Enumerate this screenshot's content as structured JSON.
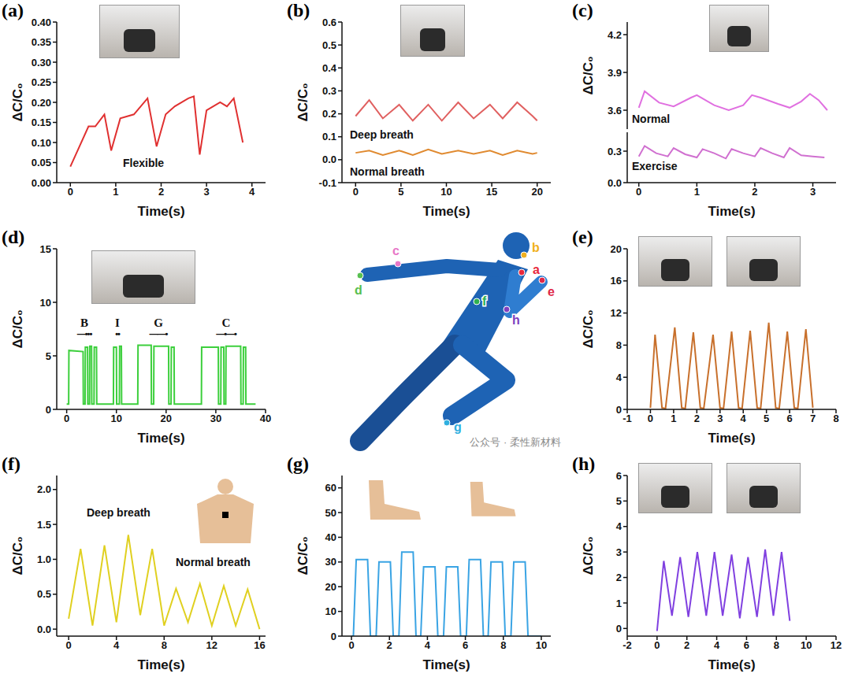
{
  "chart_data": [
    {
      "panel": "(a)",
      "type": "line",
      "x_label": "Time(s)",
      "y_label": "ΔC/C₀",
      "xlim": [
        -0.3,
        4.3
      ],
      "xticks": [
        0,
        1,
        2,
        3,
        4
      ],
      "ylim": [
        0,
        0.4
      ],
      "yticks": [
        {
          "value": 0,
          "label": "0.00"
        },
        0.05,
        {
          "value": 0.1,
          "label": "0.10"
        },
        0.15,
        {
          "value": 0.2,
          "label": "0.20"
        },
        0.25,
        {
          "value": 0.3,
          "label": "0.30"
        },
        0.35,
        {
          "value": 0.4,
          "label": "0.40"
        }
      ],
      "x": [
        0,
        0.2,
        0.4,
        0.55,
        0.75,
        0.9,
        1.1,
        1.4,
        1.7,
        1.9,
        2.1,
        2.3,
        2.6,
        2.72,
        2.85,
        3.0,
        3.3,
        3.45,
        3.6,
        3.8
      ],
      "values": [
        0.04,
        0.09,
        0.14,
        0.14,
        0.17,
        0.08,
        0.16,
        0.17,
        0.21,
        0.09,
        0.17,
        0.19,
        0.21,
        0.215,
        0.07,
        0.18,
        0.2,
        0.19,
        0.21,
        0.1
      ],
      "color": "#e03030",
      "annotations": [
        "Flexible"
      ]
    },
    {
      "panel": "(b)",
      "type": "line",
      "x_label": "Time(s)",
      "y_label": "ΔC/C₀",
      "xlim": [
        -1.5,
        21.5
      ],
      "xticks": [
        0,
        5,
        10,
        15,
        20
      ],
      "ylim": [
        -0.1,
        0.6
      ],
      "yticks": [
        -0.1,
        {
          "value": 0,
          "label": "0.0"
        },
        0.1,
        0.2,
        0.3,
        0.4,
        0.5,
        0.6
      ],
      "x": [
        0,
        1.5,
        3,
        4.8,
        6.3,
        8,
        9.5,
        11.3,
        13,
        14.8,
        16.2,
        17.8,
        19.5,
        20
      ],
      "series": [
        {
          "name": "Deep breath",
          "color": "#e06060",
          "values": [
            0.19,
            0.26,
            0.18,
            0.24,
            0.17,
            0.24,
            0.17,
            0.25,
            0.18,
            0.24,
            0.18,
            0.25,
            0.19,
            0.17
          ]
        },
        {
          "name": "Normal breath",
          "color": "#e08a30",
          "values": [
            0.03,
            0.04,
            0.02,
            0.04,
            0.02,
            0.045,
            0.025,
            0.04,
            0.025,
            0.04,
            0.02,
            0.04,
            0.025,
            0.03
          ]
        }
      ]
    },
    {
      "panel": "(c)",
      "type": "line",
      "y_label": "ΔC/C₀",
      "tick_labels": "y",
      "xlim": [
        -0.2,
        3.4
      ],
      "ylim": [
        3.45,
        4.3
      ],
      "yticks": [
        3.6,
        3.9,
        4.2
      ],
      "x": [
        0,
        0.1,
        0.35,
        0.6,
        0.9,
        1.0,
        1.3,
        1.55,
        1.8,
        1.95,
        2.1,
        2.4,
        2.6,
        2.8,
        2.95,
        3.1,
        3.25
      ],
      "series": [
        {
          "name": "Normal",
          "color": "#e070e0",
          "values": [
            3.62,
            3.75,
            3.66,
            3.63,
            3.7,
            3.72,
            3.64,
            3.6,
            3.64,
            3.72,
            3.7,
            3.65,
            3.62,
            3.67,
            3.73,
            3.68,
            3.6
          ]
        }
      ]
    },
    {
      "type": "line",
      "x_label": "Time(s)",
      "xlim": [
        -0.2,
        3.4
      ],
      "xticks": [
        0,
        1,
        2,
        3
      ],
      "ylim": [
        0,
        0.48
      ],
      "yticks": [
        {
          "value": 0,
          "label": "0.0"
        },
        0.3
      ],
      "x": [
        0,
        0.1,
        0.3,
        0.5,
        0.6,
        0.8,
        1.0,
        1.1,
        1.3,
        1.5,
        1.6,
        1.8,
        2.0,
        2.1,
        2.3,
        2.5,
        2.6,
        2.8,
        3.0,
        3.2
      ],
      "series": [
        {
          "name": "Exercise",
          "color": "#d070d0",
          "values": [
            0.25,
            0.35,
            0.28,
            0.25,
            0.33,
            0.27,
            0.24,
            0.32,
            0.28,
            0.23,
            0.32,
            0.28,
            0.25,
            0.33,
            0.28,
            0.24,
            0.33,
            0.26,
            0.25,
            0.24
          ]
        }
      ]
    },
    {
      "panel": "(d)",
      "type": "line",
      "x_label": "Time(s)",
      "y_label": "ΔC/C₀",
      "xlim": [
        -2,
        40
      ],
      "xticks": [
        0,
        10,
        20,
        30,
        40
      ],
      "ylim": [
        0,
        15
      ],
      "yticks": [
        0,
        5,
        10,
        15
      ],
      "x": [
        0,
        0.4,
        0.45,
        3.3,
        3.35,
        3.7,
        3.75,
        4.2,
        4.25,
        4.6,
        4.65,
        5.0,
        5.05,
        5.5,
        5.55,
        6.0,
        6.05,
        9.4,
        9.45,
        10.0,
        10.05,
        10.6,
        10.65,
        11.0,
        11.05,
        14.3,
        14.35,
        17.0,
        17.05,
        17.5,
        17.55,
        20.5,
        20.55,
        21.0,
        21.05,
        21.6,
        21.65,
        27.1,
        27.15,
        30.5,
        30.55,
        31.0,
        31.05,
        31.6,
        31.65,
        32.0,
        32.05,
        35.0,
        35.05,
        35.5,
        35.55,
        36.0,
        36.05,
        38.0
      ],
      "values": [
        0.5,
        0.5,
        5.5,
        5.4,
        0.5,
        0.5,
        5.8,
        5.8,
        0.5,
        0.5,
        5.9,
        5.9,
        0.5,
        0.5,
        5.8,
        5.8,
        0.5,
        0.5,
        5.8,
        5.8,
        0.5,
        0.5,
        5.9,
        5.9,
        0.5,
        0.5,
        6.0,
        6.0,
        0.5,
        0.5,
        5.9,
        5.9,
        0.5,
        0.5,
        5.8,
        5.8,
        0.5,
        0.5,
        5.8,
        5.8,
        0.5,
        0.5,
        5.8,
        5.8,
        0.5,
        0.5,
        5.9,
        5.9,
        0.5,
        0.5,
        5.8,
        5.8,
        0.5,
        0.5
      ],
      "color": "#3ccf3c",
      "annotations": [
        {
          "text": "B",
          "code": "—•••"
        },
        {
          "text": "I",
          "code": "••"
        },
        {
          "text": "G",
          "code": "——•"
        },
        {
          "text": "C",
          "code": "—•—•"
        }
      ]
    },
    {
      "panel": "(e)",
      "type": "line",
      "x_label": "Time(s)",
      "y_label": "ΔC/C₀",
      "xlim": [
        -1,
        8
      ],
      "xticks": [
        -1,
        0,
        1,
        2,
        3,
        4,
        5,
        6,
        7,
        8
      ],
      "ylim": [
        0,
        20
      ],
      "yticks": [
        0,
        4,
        8,
        12,
        16,
        20
      ],
      "x": [
        0,
        0.2,
        0.5,
        0.65,
        1.05,
        1.35,
        1.5,
        1.85,
        2.15,
        2.3,
        2.7,
        3.0,
        3.15,
        3.5,
        3.8,
        3.95,
        4.3,
        4.6,
        4.75,
        5.1,
        5.4,
        5.55,
        5.9,
        6.2,
        6.35,
        6.7,
        7.0
      ],
      "values": [
        0.2,
        9.3,
        0.2,
        0.1,
        10.2,
        0.2,
        0.1,
        9.6,
        0.2,
        0.1,
        9.3,
        0.2,
        0.1,
        9.7,
        0.2,
        0.1,
        9.8,
        0.2,
        0.1,
        10.8,
        0.2,
        0.1,
        9.7,
        0.2,
        0.1,
        10.0,
        0.2
      ],
      "color": "#c8702c"
    },
    {
      "panel": "(f)",
      "type": "line",
      "x_label": "Time(s)",
      "y_label": "ΔC/C₀",
      "xlim": [
        -1,
        16.5
      ],
      "xticks": [
        0,
        4,
        8,
        12,
        16
      ],
      "ylim": [
        -0.1,
        2.2
      ],
      "yticks": [
        {
          "value": 0,
          "label": "0.0"
        },
        0.5,
        {
          "value": 1,
          "label": "1.0"
        },
        1.5,
        {
          "value": 2,
          "label": "2.0"
        }
      ],
      "x": [
        0,
        1,
        2,
        3,
        4,
        5,
        6,
        7,
        8,
        9,
        10,
        11,
        12,
        13,
        14,
        15,
        16
      ],
      "values": [
        0.15,
        1.15,
        0.05,
        1.2,
        0.1,
        1.35,
        0.2,
        1.15,
        0.05,
        0.58,
        0.1,
        0.65,
        0.05,
        0.62,
        0.05,
        0.57,
        0.0
      ],
      "color": "#e0d020",
      "annotations": [
        "Deep breath",
        "Normal breath"
      ]
    },
    {
      "panel": "(g)",
      "type": "line",
      "x_label": "Time(s)",
      "y_label": "ΔC/C₀",
      "xlim": [
        -0.5,
        10.5
      ],
      "xticks": [
        0,
        2,
        4,
        6,
        8,
        10
      ],
      "ylim": [
        0,
        65
      ],
      "yticks": [
        0,
        10,
        20,
        30,
        40,
        50,
        60
      ],
      "x": [
        0,
        0.1,
        0.25,
        0.85,
        1.0,
        1.3,
        1.45,
        2.05,
        2.2,
        2.5,
        2.65,
        3.25,
        3.4,
        3.65,
        3.8,
        4.4,
        4.55,
        4.85,
        5.0,
        5.6,
        5.75,
        6.05,
        6.2,
        6.8,
        6.95,
        7.2,
        7.35,
        7.95,
        8.1,
        8.4,
        8.55,
        9.15,
        9.3,
        10.0
      ],
      "values": [
        0,
        0,
        31,
        31,
        0,
        0,
        30,
        30,
        0,
        0,
        34,
        34,
        0,
        0,
        28,
        28,
        0,
        0,
        28,
        28,
        0,
        0,
        31,
        31,
        0,
        0,
        30,
        30,
        0,
        0,
        30,
        30,
        0,
        0
      ],
      "color": "#3aa4e4"
    },
    {
      "panel": "(h)",
      "type": "line",
      "x_label": "Time(s)",
      "y_label": "ΔC/C₀",
      "xlim": [
        -2,
        12
      ],
      "xticks": [
        -2,
        0,
        2,
        4,
        6,
        8,
        10,
        12
      ],
      "ylim": [
        -0.3,
        6
      ],
      "yticks": [
        0,
        1,
        2,
        3,
        4,
        5,
        6
      ],
      "x": [
        0,
        0.45,
        1.0,
        1.55,
        2.1,
        2.7,
        3.3,
        3.85,
        4.4,
        5.0,
        5.55,
        6.1,
        6.7,
        7.25,
        7.8,
        8.35,
        8.9
      ],
      "values": [
        -0.1,
        2.65,
        0.5,
        2.8,
        0.45,
        3.0,
        0.5,
        3.0,
        0.5,
        2.9,
        0.4,
        2.8,
        0.45,
        3.1,
        0.5,
        3.0,
        0.3
      ],
      "color": "#8040e0"
    }
  ],
  "figure": {
    "points": [
      {
        "label": "a",
        "color": "#e8283c"
      },
      {
        "label": "b",
        "color": "#f0b020"
      },
      {
        "label": "c",
        "color": "#e878c8"
      },
      {
        "label": "d",
        "color": "#58c050"
      },
      {
        "label": "e",
        "color": "#e02848"
      },
      {
        "label": "f",
        "color": "#30b050"
      },
      {
        "label": "g",
        "color": "#30b0e0"
      },
      {
        "label": "h",
        "color": "#8040c0"
      }
    ]
  },
  "watermark": "公众号 · 柔性新材料"
}
